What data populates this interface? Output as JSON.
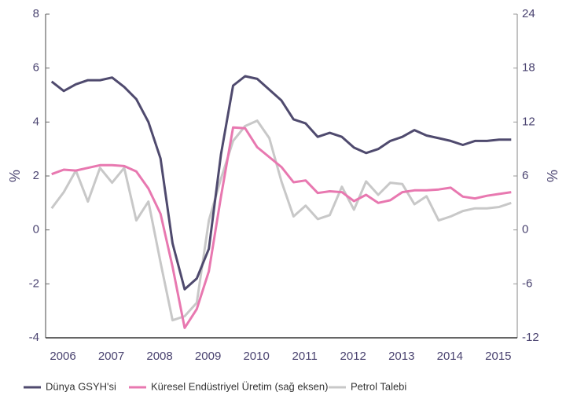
{
  "chart_data": {
    "type": "line",
    "categories": [
      "2006",
      null,
      null,
      null,
      "2007",
      null,
      null,
      null,
      "2008",
      null,
      null,
      null,
      "2009",
      null,
      null,
      null,
      "2010",
      null,
      null,
      null,
      "2011",
      null,
      null,
      null,
      "2012",
      null,
      null,
      null,
      "2013",
      null,
      null,
      null,
      "2014",
      null,
      null,
      null,
      "2015",
      null,
      null
    ],
    "series": [
      {
        "name": "Dünya GSYH'si",
        "color": "#4f4a6e",
        "values": [
          5.5,
          5.15,
          5.4,
          5.55,
          5.55,
          5.65,
          5.3,
          4.85,
          4.0,
          2.65,
          -0.5,
          -2.2,
          -1.8,
          -0.7,
          2.8,
          5.35,
          5.7,
          5.6,
          5.2,
          4.8,
          4.1,
          3.95,
          3.45,
          3.6,
          3.45,
          3.05,
          2.85,
          3.0,
          3.3,
          3.45,
          3.7,
          3.5,
          3.4,
          3.3,
          3.15,
          3.3,
          3.3,
          3.35,
          3.35
        ]
      },
      {
        "name": "Küresel Endüstriyel Üretim (sağ eksen)",
        "color": "#e878b0",
        "axis": "y2",
        "values": [
          6.2,
          6.7,
          6.6,
          6.9,
          7.2,
          7.2,
          7.1,
          6.5,
          4.6,
          1.8,
          -4.1,
          -10.9,
          -8.8,
          -4.6,
          3.7,
          11.4,
          11.3,
          9.2,
          8.1,
          7.0,
          5.3,
          5.5,
          4.1,
          4.3,
          4.2,
          3.2,
          3.9,
          3.0,
          3.3,
          4.2,
          4.4,
          4.4,
          4.5,
          4.7,
          3.7,
          3.5,
          3.8,
          4.0,
          4.2
        ]
      },
      {
        "name": "Petrol Talebi",
        "color": "#c8c8c8",
        "values": [
          0.8,
          1.4,
          2.2,
          1.05,
          2.3,
          1.75,
          2.3,
          0.35,
          1.05,
          -1.2,
          -3.35,
          -3.2,
          -2.7,
          0.35,
          1.9,
          3.3,
          3.85,
          4.05,
          3.4,
          1.8,
          0.5,
          0.9,
          0.4,
          0.55,
          1.6,
          0.75,
          1.8,
          1.3,
          1.75,
          1.7,
          0.95,
          1.25,
          0.35,
          0.5,
          0.7,
          0.8,
          0.8,
          0.85,
          1.0
        ]
      }
    ],
    "ylabel": "%",
    "y2label": "%",
    "ylim": [
      -4,
      8
    ],
    "yticks": [
      -4,
      -2,
      0,
      2,
      4,
      6,
      8
    ],
    "y2lim": [
      -12,
      24
    ],
    "y2ticks": [
      -12,
      -6,
      0,
      6,
      12,
      18,
      24
    ],
    "legend": "bottom"
  }
}
